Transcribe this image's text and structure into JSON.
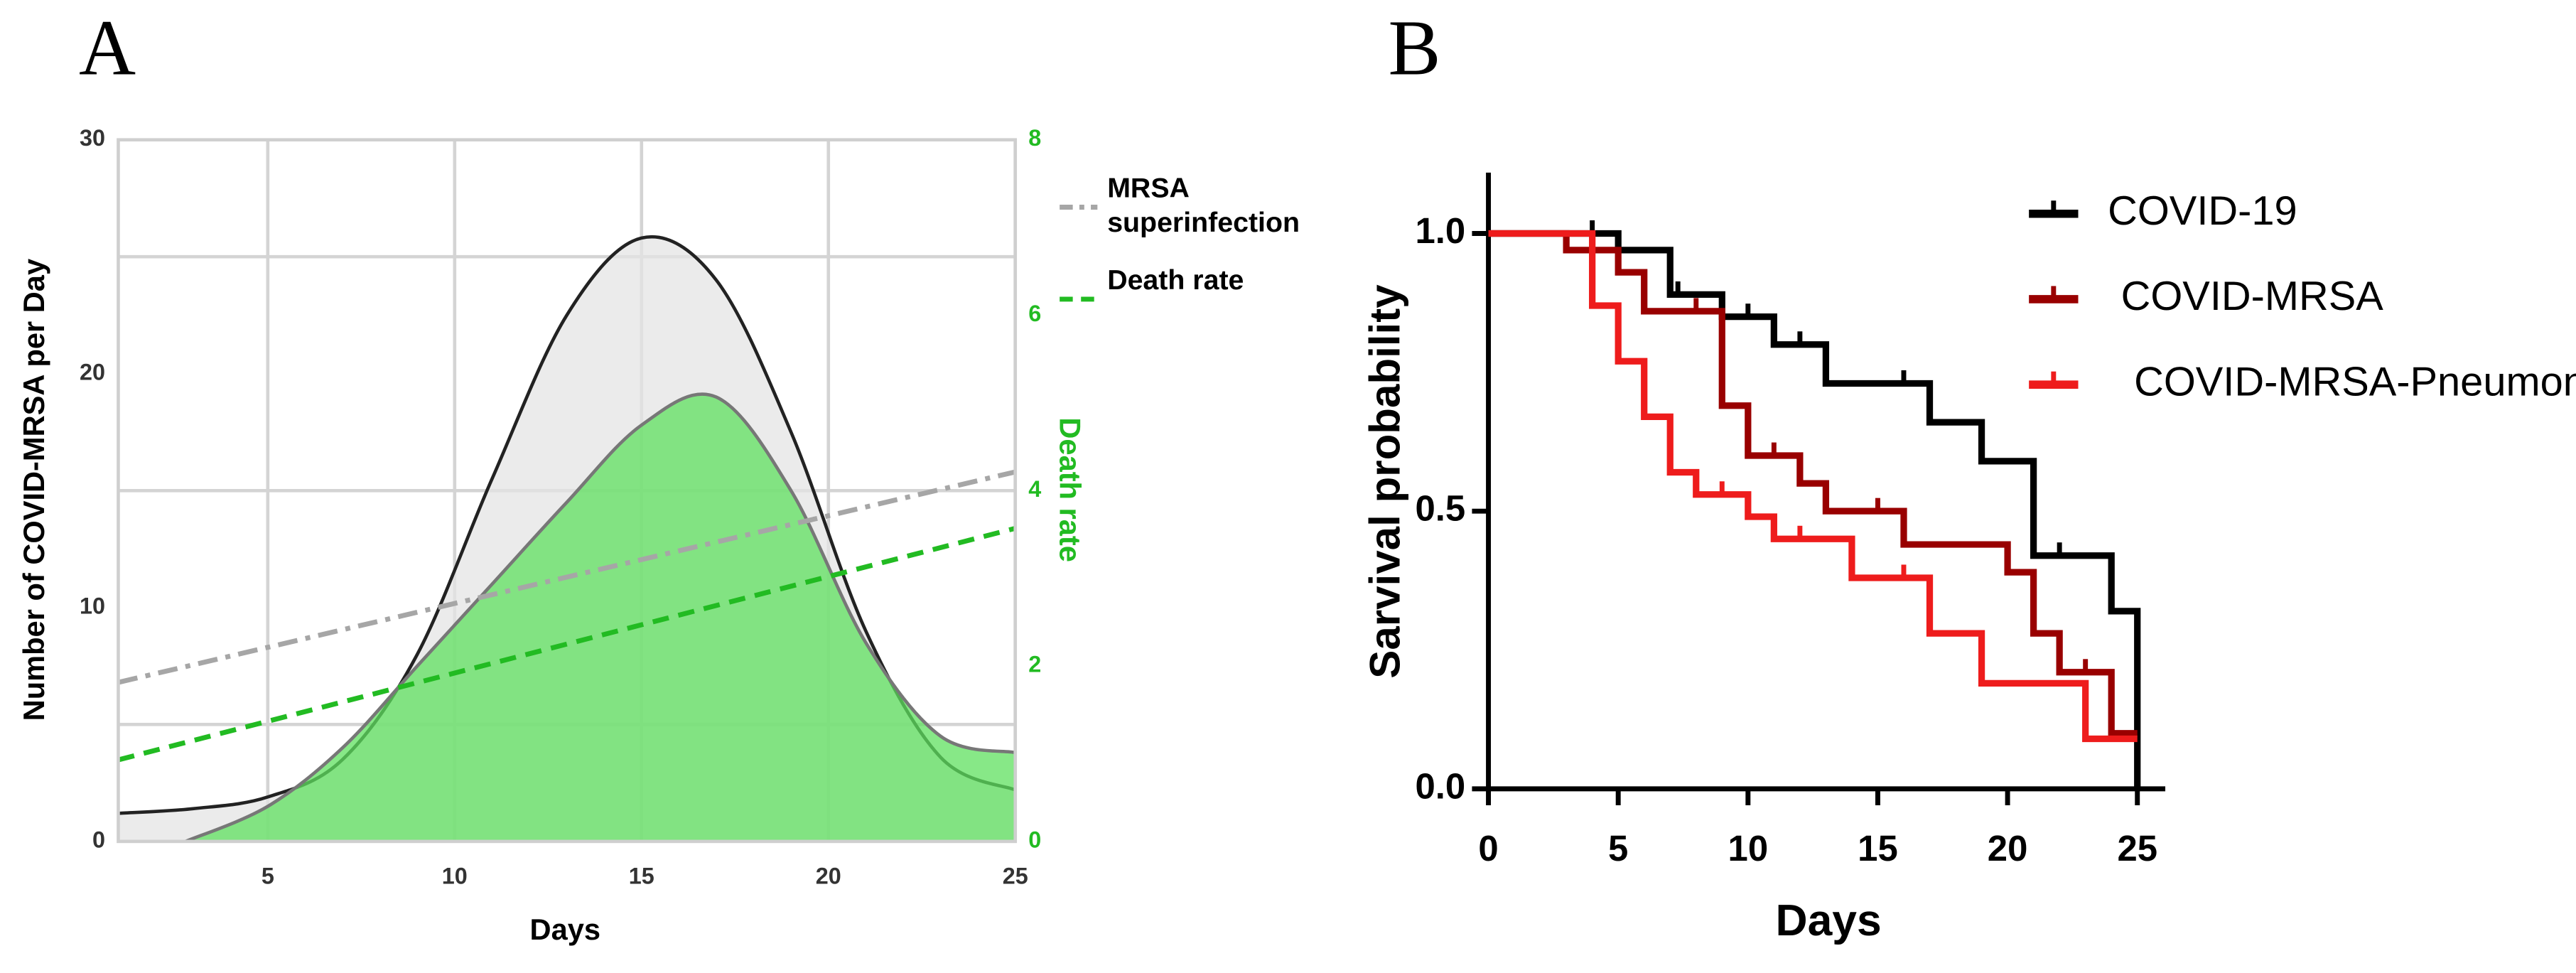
{
  "chart_data": [
    {
      "type": "line",
      "label": "A",
      "xlabel": "Days",
      "ylabel": "Number of COVID-MRSA per Day",
      "y2label": "Death rate",
      "xlim": [
        1,
        25
      ],
      "xticks": [
        5,
        10,
        15,
        20,
        25
      ],
      "ylim": [
        0,
        30
      ],
      "yticks": [
        0,
        10,
        20,
        30
      ],
      "ygrid": [
        5,
        15,
        25
      ],
      "y2lim": [
        0,
        8
      ],
      "y2ticks": [
        0,
        2,
        4,
        6,
        8
      ],
      "y2color": "#22bb22",
      "grid": true,
      "series": [
        {
          "x": [
            1,
            3,
            5,
            7,
            9,
            11,
            13,
            15,
            17,
            19,
            21,
            23,
            25
          ],
          "values": [
            1.2,
            1.4,
            1.9,
            3.5,
            8,
            15.5,
            22.5,
            25.8,
            24,
            17.5,
            9,
            3.6,
            2.2
          ],
          "color": "#222222",
          "fill": "#e4e4e4"
        },
        {
          "x": [
            2.8,
            5,
            7,
            9,
            11,
            13,
            15,
            17,
            19,
            21,
            23,
            25
          ],
          "values": [
            0,
            1.5,
            4,
            7.5,
            11,
            14.5,
            17.8,
            19,
            15,
            8.5,
            4.5,
            3.8
          ],
          "color": "#777777",
          "fill": "#5fe05f"
        },
        {
          "name": "MRSA superinfection",
          "x": [
            1,
            25
          ],
          "values": [
            6.8,
            15.8
          ],
          "color": "#a6a6a6",
          "dash": "dashdot"
        },
        {
          "name": "Death rate",
          "x": [
            1,
            25
          ],
          "values": [
            0.93,
            3.57
          ],
          "color": "#22bb22",
          "dash": "dash",
          "axis": "y2"
        }
      ]
    },
    {
      "type": "step",
      "label": "B",
      "xlabel": "Days",
      "ylabel": "Sarvival probability",
      "xlim": [
        0,
        25
      ],
      "xticks": [
        0,
        5,
        10,
        15,
        20,
        25
      ],
      "ylim": [
        0,
        1
      ],
      "yticks": [
        {
          "value": 0,
          "label": "0.0"
        },
        0.5,
        {
          "value": 1,
          "label": "1.0"
        }
      ],
      "series": [
        {
          "name": "COVID-19",
          "color": "#000000",
          "x": [
            0,
            5,
            7,
            9,
            11,
            13,
            17,
            19,
            21,
            24,
            25
          ],
          "values": [
            1,
            0.97,
            0.89,
            0.85,
            0.8,
            0.73,
            0.66,
            0.59,
            0.42,
            0.32,
            0
          ],
          "censor": [
            4,
            7.3,
            10,
            12,
            16,
            17,
            19,
            21,
            22,
            24
          ]
        },
        {
          "name": "COVID-MRSA",
          "color": "#990000",
          "x": [
            0,
            3,
            5,
            6,
            9,
            10,
            12,
            13,
            16,
            20,
            21,
            22,
            24,
            25
          ],
          "values": [
            1,
            0.97,
            0.93,
            0.86,
            0.69,
            0.6,
            0.55,
            0.5,
            0.44,
            0.39,
            0.28,
            0.21,
            0.1,
            0.1
          ],
          "censor": [
            8,
            11,
            15,
            23
          ]
        },
        {
          "name": "COVID-MRSA-Pneumonia",
          "color": "#ee1c1c",
          "x": [
            0,
            3,
            4,
            5,
            6,
            7,
            8,
            10,
            11,
            14,
            17,
            19,
            23,
            25
          ],
          "values": [
            1,
            1,
            0.87,
            0.77,
            0.67,
            0.57,
            0.53,
            0.49,
            0.45,
            0.38,
            0.28,
            0.19,
            0.09,
            0.09
          ],
          "censor": [
            9,
            12,
            16
          ]
        }
      ]
    }
  ]
}
